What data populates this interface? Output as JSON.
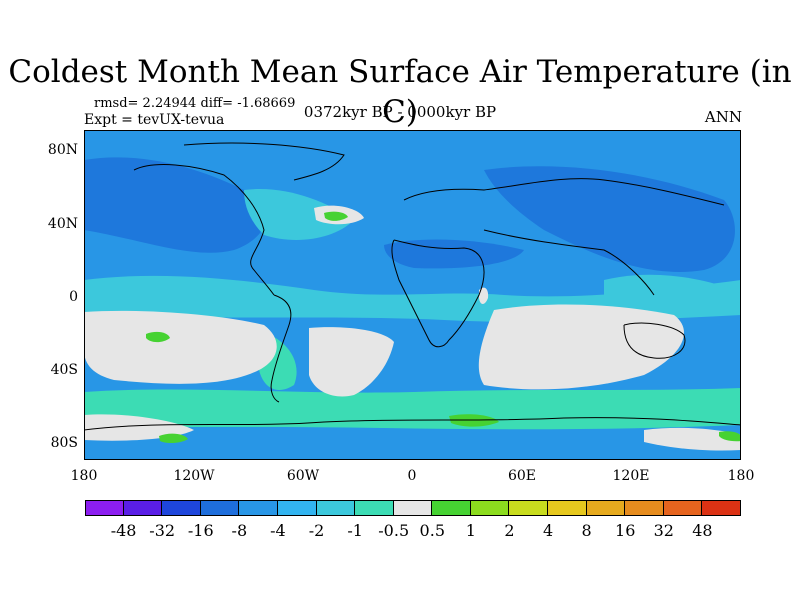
{
  "title": "Coldest Month Mean Surface Air Temperature (in C)",
  "stats_line": "rmsd= 2.24944 diff= -1.68669",
  "experiment_line": "Expt = tevUX-tevua",
  "period_line": "0372kyr BP - 0000kyr BP",
  "season_label": "ANN",
  "lat_ticks": [
    "80N",
    "40N",
    "0",
    "40S",
    "80S"
  ],
  "lon_ticks": [
    "180",
    "120W",
    "60W",
    "0",
    "60E",
    "120E",
    "180"
  ],
  "colorbar": {
    "colors": [
      "#8c1ef0",
      "#5a1ee6",
      "#1e46dc",
      "#1e6edc",
      "#2896e6",
      "#32b4f0",
      "#3cc8dc",
      "#3cdcb4",
      "#e6e6e6",
      "#46d232",
      "#8cdc1e",
      "#c8dc1e",
      "#e6c81e",
      "#e6aa1e",
      "#e68c1e",
      "#e6641e",
      "#dc3214"
    ],
    "labels": [
      "-48",
      "-32",
      "-16",
      "-8",
      "-4",
      "-2",
      "-1",
      "-0.5",
      "0.5",
      "1",
      "2",
      "4",
      "8",
      "16",
      "32",
      "48"
    ]
  },
  "field_colors": {
    "ocean_base": "#2896e6",
    "cool_fill": "#32b4f0",
    "deep_cool": "#1e78dc",
    "mild_fill": "#3cc8dc",
    "teal_fill": "#3cdcb4",
    "neutral_fill": "#e6e6e6",
    "warm_fill": "#46d232"
  }
}
